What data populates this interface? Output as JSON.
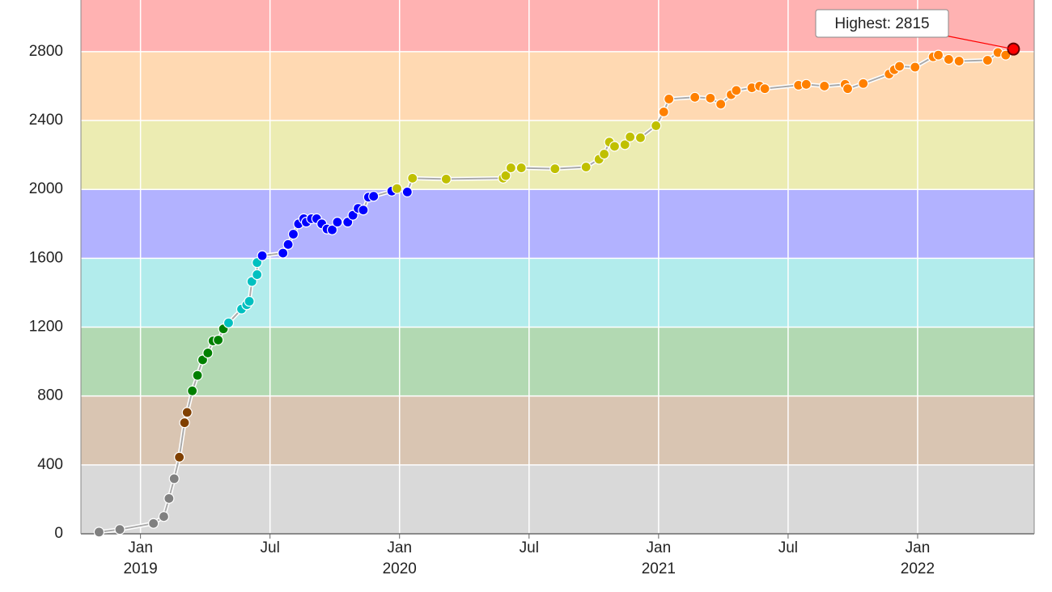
{
  "chart_data": {
    "type": "scatter",
    "annotation": "Highest: 2815",
    "band_edges": [
      0,
      400,
      800,
      1200,
      1600,
      2000,
      2400,
      2800
    ],
    "band_colors": [
      "#808080",
      "#804000",
      "#008000",
      "#00c0c0",
      "#0000ff",
      "#c0c000",
      "#ff8000",
      "#ff0000"
    ],
    "line_color": "#aaaaaa",
    "grid": true,
    "xlim": [
      2018.77,
      2022.45
    ],
    "ylim": [
      0,
      3100
    ],
    "yticks": [
      0,
      400,
      800,
      1200,
      1600,
      2000,
      2400,
      2800
    ],
    "xticks": [
      {
        "value": 2019,
        "label": "Jan 2019"
      },
      {
        "value": 2019.5,
        "label": "Jul"
      },
      {
        "value": 2020,
        "label": "Jan 2020"
      },
      {
        "value": 2020.5,
        "label": "Jul"
      },
      {
        "value": 2021,
        "label": "Jan 2021"
      },
      {
        "value": 2021.5,
        "label": "Jul"
      },
      {
        "value": 2022,
        "label": "Jan 2022"
      }
    ],
    "x": [
      2018.84,
      2018.92,
      2019.05,
      2019.09,
      2019.11,
      2019.13,
      2019.15,
      2019.17,
      2019.18,
      2019.2,
      2019.22,
      2019.24,
      2019.26,
      2019.28,
      2019.3,
      2019.32,
      2019.34,
      2019.39,
      2019.41,
      2019.42,
      2019.43,
      2019.45,
      2019.45,
      2019.47,
      2019.55,
      2019.57,
      2019.59,
      2019.61,
      2019.63,
      2019.64,
      2019.66,
      2019.68,
      2019.7,
      2019.72,
      2019.74,
      2019.76,
      2019.8,
      2019.82,
      2019.84,
      2019.86,
      2019.88,
      2019.9,
      2019.97,
      2019.99,
      2020.03,
      2020.05,
      2020.18,
      2020.4,
      2020.41,
      2020.43,
      2020.47,
      2020.6,
      2020.72,
      2020.77,
      2020.79,
      2020.81,
      2020.83,
      2020.87,
      2020.89,
      2020.93,
      2020.99,
      2021.02,
      2021.04,
      2021.14,
      2021.2,
      2021.24,
      2021.28,
      2021.3,
      2021.36,
      2021.39,
      2021.41,
      2021.54,
      2021.57,
      2021.64,
      2021.72,
      2021.73,
      2021.79,
      2021.89,
      2021.91,
      2021.93,
      2021.99,
      2022.06,
      2022.08,
      2022.12,
      2022.16,
      2022.27,
      2022.31,
      2022.34,
      2022.37
    ],
    "values": [
      10,
      25,
      60,
      100,
      205,
      320,
      445,
      645,
      705,
      830,
      920,
      1010,
      1050,
      1120,
      1125,
      1190,
      1225,
      1305,
      1330,
      1350,
      1465,
      1505,
      1575,
      1615,
      1630,
      1680,
      1740,
      1800,
      1830,
      1810,
      1830,
      1830,
      1800,
      1770,
      1765,
      1810,
      1810,
      1850,
      1890,
      1880,
      1955,
      1960,
      1990,
      2005,
      1985,
      2065,
      2060,
      2065,
      2080,
      2125,
      2125,
      2120,
      2130,
      2175,
      2205,
      2275,
      2250,
      2260,
      2305,
      2300,
      2370,
      2450,
      2525,
      2535,
      2530,
      2495,
      2550,
      2575,
      2590,
      2600,
      2585,
      2605,
      2610,
      2600,
      2610,
      2585,
      2615,
      2670,
      2695,
      2715,
      2710,
      2770,
      2780,
      2755,
      2745,
      2750,
      2795,
      2780,
      2815
    ]
  }
}
